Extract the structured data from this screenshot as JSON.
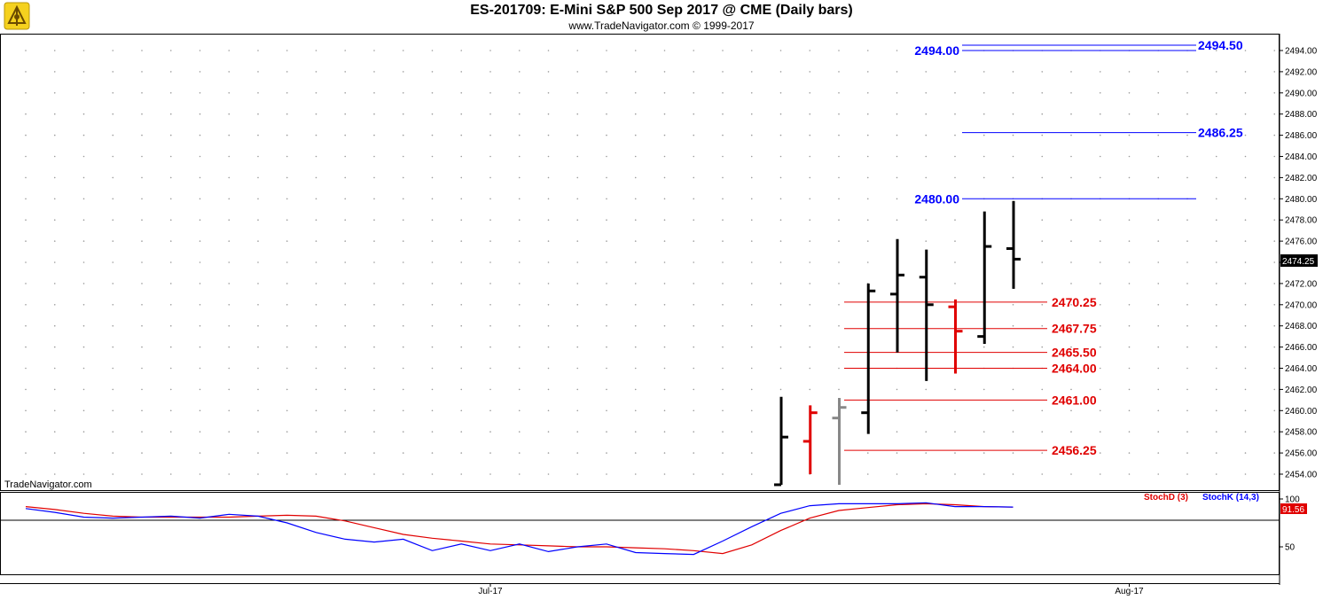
{
  "header": {
    "title": "ES-201709:  E-Mini S&P 500 Sep 2017 @ CME  (Daily bars)",
    "subtitle": "www.TradeNavigator.com © 1999-2017",
    "watermark": "TradeNavigator.com"
  },
  "colors": {
    "blue_level": "#0000ff",
    "red_level": "#e00000",
    "bar_black": "#000000",
    "bar_red": "#e00000",
    "bar_gray": "#888888",
    "stochd": "#e00000",
    "stochk": "#0000ff",
    "grid_dot": "#9a9a9a"
  },
  "chart_data": [
    {
      "type": "ohlc",
      "title": "ES-201709:  E-Mini S&P 500 Sep 2017 @ CME  (Daily bars)",
      "ylim": [
        2453,
        2495
      ],
      "y_ticks": [
        "2454.00",
        "2456.00",
        "2458.00",
        "2460.00",
        "2462.00",
        "2464.00",
        "2466.00",
        "2468.00",
        "2470.00",
        "2472.00",
        "2474.00",
        "2476.00",
        "2478.00",
        "2480.00",
        "2482.00",
        "2484.00",
        "2486.00",
        "2488.00",
        "2490.00",
        "2492.00",
        "2494.00"
      ],
      "x_ticks": [
        {
          "label": "Jul-17",
          "index": 16
        },
        {
          "label": "Aug-17",
          "index": 38
        }
      ],
      "bars": [
        {
          "i": 26,
          "o": 2453.0,
          "h": 2461.3,
          "l": 2453.0,
          "c": 2457.5,
          "color": "black"
        },
        {
          "i": 27,
          "o": 2457.1,
          "h": 2460.5,
          "l": 2454.0,
          "c": 2459.8,
          "color": "red"
        },
        {
          "i": 28,
          "o": 2459.3,
          "h": 2461.2,
          "l": 2453.0,
          "c": 2460.3,
          "color": "gray"
        },
        {
          "i": 29,
          "o": 2459.8,
          "h": 2472.0,
          "l": 2457.8,
          "c": 2471.3,
          "color": "black"
        },
        {
          "i": 30,
          "o": 2471.0,
          "h": 2476.2,
          "l": 2465.5,
          "c": 2472.8,
          "color": "black"
        },
        {
          "i": 31,
          "o": 2472.6,
          "h": 2475.2,
          "l": 2462.8,
          "c": 2470.0,
          "color": "black"
        },
        {
          "i": 32,
          "o": 2469.8,
          "h": 2470.5,
          "l": 2463.5,
          "c": 2467.5,
          "color": "red"
        },
        {
          "i": 33,
          "o": 2467.0,
          "h": 2478.8,
          "l": 2466.3,
          "c": 2475.5,
          "color": "black"
        },
        {
          "i": 34,
          "o": 2475.3,
          "h": 2479.8,
          "l": 2471.5,
          "c": 2474.3,
          "color": "black"
        }
      ],
      "last_price": "2474.25",
      "levels": [
        {
          "value": 2494.5,
          "label": "2494.50",
          "color": "blue",
          "from_index": 32,
          "to_index": 40,
          "label_side": "right"
        },
        {
          "value": 2494.0,
          "label": "2494.00",
          "color": "blue",
          "from_index": 32,
          "to_index": 40,
          "label_side": "left"
        },
        {
          "value": 2486.25,
          "label": "2486.25",
          "color": "blue",
          "from_index": 32,
          "to_index": 40,
          "label_side": "right"
        },
        {
          "value": 2480.0,
          "label": "2480.00",
          "color": "blue",
          "from_index": 32,
          "to_index": 40,
          "label_side": "left"
        },
        {
          "value": 2470.25,
          "label": "2470.25",
          "color": "red",
          "from_index": 28,
          "to_index": 35,
          "label_side": "right"
        },
        {
          "value": 2467.75,
          "label": "2467.75",
          "color": "red",
          "from_index": 28,
          "to_index": 35,
          "label_side": "right"
        },
        {
          "value": 2465.5,
          "label": "2465.50",
          "color": "red",
          "from_index": 28,
          "to_index": 35,
          "label_side": "right"
        },
        {
          "value": 2464.0,
          "label": "2464.00",
          "color": "red",
          "from_index": 28,
          "to_index": 35,
          "label_side": "right"
        },
        {
          "value": 2461.0,
          "label": "2461.00",
          "color": "red",
          "from_index": 28,
          "to_index": 35,
          "label_side": "right"
        },
        {
          "value": 2456.25,
          "label": "2456.25",
          "color": "red",
          "from_index": 28,
          "to_index": 35,
          "label_side": "right"
        }
      ]
    },
    {
      "type": "line",
      "title": "",
      "ylim": [
        25,
        105
      ],
      "y_ticks": [
        "100",
        "50"
      ],
      "reference_line": 80,
      "series": [
        {
          "name": "StochD (3)",
          "color": "red",
          "values": [
            92,
            89,
            85,
            82,
            81,
            81,
            81,
            81,
            82,
            83,
            82,
            77,
            70,
            63,
            59,
            56,
            53,
            52,
            51,
            50,
            50,
            49,
            48,
            46,
            43,
            52,
            67,
            80,
            88,
            91,
            94,
            95,
            94,
            92,
            91.5
          ]
        },
        {
          "name": "StochK (14,3)",
          "color": "blue",
          "values": [
            90,
            86,
            81,
            80,
            81,
            82,
            80,
            84,
            82,
            75,
            65,
            58,
            55,
            58,
            46,
            53,
            46,
            53,
            45,
            50,
            53,
            44,
            43,
            42,
            56,
            71,
            85,
            93,
            95,
            95,
            95,
            96,
            92,
            92,
            91.56
          ]
        }
      ],
      "last_value": "91.56",
      "legend_position": "top-right"
    }
  ]
}
